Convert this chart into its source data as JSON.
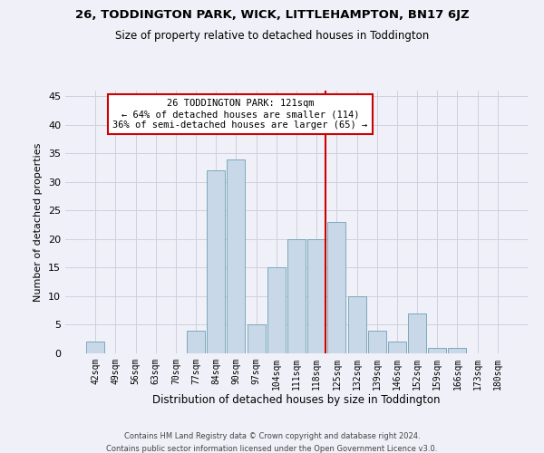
{
  "title": "26, TODDINGTON PARK, WICK, LITTLEHAMPTON, BN17 6JZ",
  "subtitle": "Size of property relative to detached houses in Toddington",
  "xlabel": "Distribution of detached houses by size in Toddington",
  "ylabel": "Number of detached properties",
  "categories": [
    "42sqm",
    "49sqm",
    "56sqm",
    "63sqm",
    "70sqm",
    "77sqm",
    "84sqm",
    "90sqm",
    "97sqm",
    "104sqm",
    "111sqm",
    "118sqm",
    "125sqm",
    "132sqm",
    "139sqm",
    "146sqm",
    "152sqm",
    "159sqm",
    "166sqm",
    "173sqm",
    "180sqm"
  ],
  "values": [
    2,
    0,
    0,
    0,
    0,
    4,
    32,
    34,
    5,
    15,
    20,
    20,
    23,
    10,
    4,
    2,
    7,
    1,
    1,
    0,
    0
  ],
  "bar_color": "#c8d8e8",
  "bar_edge_color": "#7aaabb",
  "grid_color": "#d0d0e0",
  "background_color": "#f0f0f8",
  "annotation_text": "26 TODDINGTON PARK: 121sqm\n← 64% of detached houses are smaller (114)\n36% of semi-detached houses are larger (65) →",
  "annotation_box_color": "#ffffff",
  "annotation_box_edge": "#cc0000",
  "footer1": "Contains HM Land Registry data © Crown copyright and database right 2024.",
  "footer2": "Contains public sector information licensed under the Open Government Licence v3.0.",
  "ylim": [
    0,
    46
  ],
  "yticks": [
    0,
    5,
    10,
    15,
    20,
    25,
    30,
    35,
    40,
    45
  ]
}
